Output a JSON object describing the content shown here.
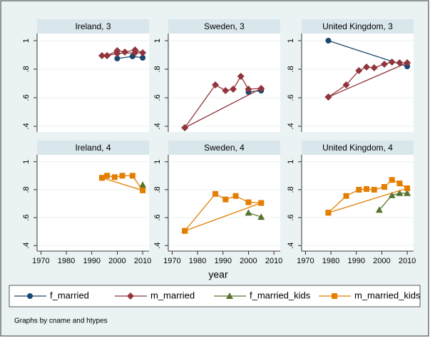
{
  "chart_data": {
    "type": "line",
    "panels": [
      "Ireland, 3",
      "Sweden, 3",
      "United Kingdom, 3",
      "Ireland, 4",
      "Sweden, 4",
      "United Kingdom, 4"
    ],
    "xlim": [
      1968.5,
      2012.5
    ],
    "xticks": [
      1970,
      1980,
      1990,
      2000,
      2010
    ],
    "ylim": [
      0.36,
      1.05
    ],
    "yticks": [
      {
        "value": 0.4,
        "label": ".4"
      },
      {
        "value": 0.6,
        "label": ".6"
      },
      {
        "value": 0.8,
        "label": ".8"
      },
      {
        "value": 1,
        "label": "1"
      }
    ],
    "grid": true,
    "xlabel": "year",
    "note": "Graphs by cname and htypes",
    "series": [
      {
        "name": "f_married",
        "color": "#1a476f",
        "marker": "circle",
        "panels": [
          {
            "x": [
              2000,
              2006,
              2010
            ],
            "values": [
              0.875,
              0.89,
              0.88
            ]
          },
          {
            "x": [
              2000,
              2005
            ],
            "values": [
              0.64,
              0.65
            ]
          },
          {
            "x": [
              1979,
              2010
            ],
            "values": [
              1.0,
              0.82
            ]
          },
          {
            "x": [],
            "values": []
          },
          {
            "x": [],
            "values": []
          },
          {
            "x": [],
            "values": []
          }
        ]
      },
      {
        "name": "m_married",
        "color": "#90353b",
        "marker": "diamond",
        "panels": [
          {
            "x": [
              1994,
              1996,
              2000,
              2003,
              2007,
              2010,
              2007,
              2000,
              1996
            ],
            "values": [
              0.895,
              0.895,
              0.93,
              0.92,
              0.935,
              0.915,
              0.915,
              0.91,
              0.895
            ]
          },
          {
            "x": [
              1975,
              1987,
              1991,
              1994,
              1997,
              2000,
              2005,
              1975
            ],
            "values": [
              0.39,
              0.69,
              0.65,
              0.66,
              0.75,
              0.66,
              0.665,
              0.39
            ]
          },
          {
            "x": [
              1979,
              1986,
              1991,
              1994,
              1997,
              2001,
              2004,
              2007,
              2010,
              1979
            ],
            "values": [
              0.605,
              0.69,
              0.79,
              0.815,
              0.81,
              0.835,
              0.85,
              0.845,
              0.845,
              0.605
            ]
          },
          {
            "x": [],
            "values": []
          },
          {
            "x": [],
            "values": []
          },
          {
            "x": [],
            "values": []
          }
        ]
      },
      {
        "name": "f_married_kids",
        "color": "#55752f",
        "marker": "triangle",
        "panels": [
          {
            "x": [],
            "values": []
          },
          {
            "x": [],
            "values": []
          },
          {
            "x": [],
            "values": []
          },
          {
            "x": [
              2010
            ],
            "values": [
              0.835
            ]
          },
          {
            "x": [
              2000,
              2005
            ],
            "values": [
              0.635,
              0.605
            ]
          },
          {
            "x": [
              1999,
              2004,
              2007,
              2010
            ],
            "values": [
              0.655,
              0.76,
              0.775,
              0.775
            ]
          }
        ]
      },
      {
        "name": "m_married_kids",
        "color": "#e37e00",
        "marker": "square",
        "panels": [
          {
            "x": [],
            "values": []
          },
          {
            "x": [],
            "values": []
          },
          {
            "x": [],
            "values": []
          },
          {
            "x": [
              1994,
              1996,
              1999,
              2002,
              2006,
              2010,
              1994
            ],
            "values": [
              0.885,
              0.9,
              0.89,
              0.9,
              0.9,
              0.795,
              0.885
            ]
          },
          {
            "x": [
              1975,
              1987,
              1991,
              1995,
              2000,
              2005,
              1975
            ],
            "values": [
              0.505,
              0.77,
              0.73,
              0.755,
              0.71,
              0.705,
              0.505
            ]
          },
          {
            "x": [
              1979,
              1986,
              1991,
              1994,
              1997,
              2001,
              2004,
              2007,
              2010,
              1979
            ],
            "values": [
              0.635,
              0.755,
              0.8,
              0.805,
              0.8,
              0.82,
              0.87,
              0.845,
              0.81,
              0.635
            ]
          }
        ]
      }
    ]
  }
}
